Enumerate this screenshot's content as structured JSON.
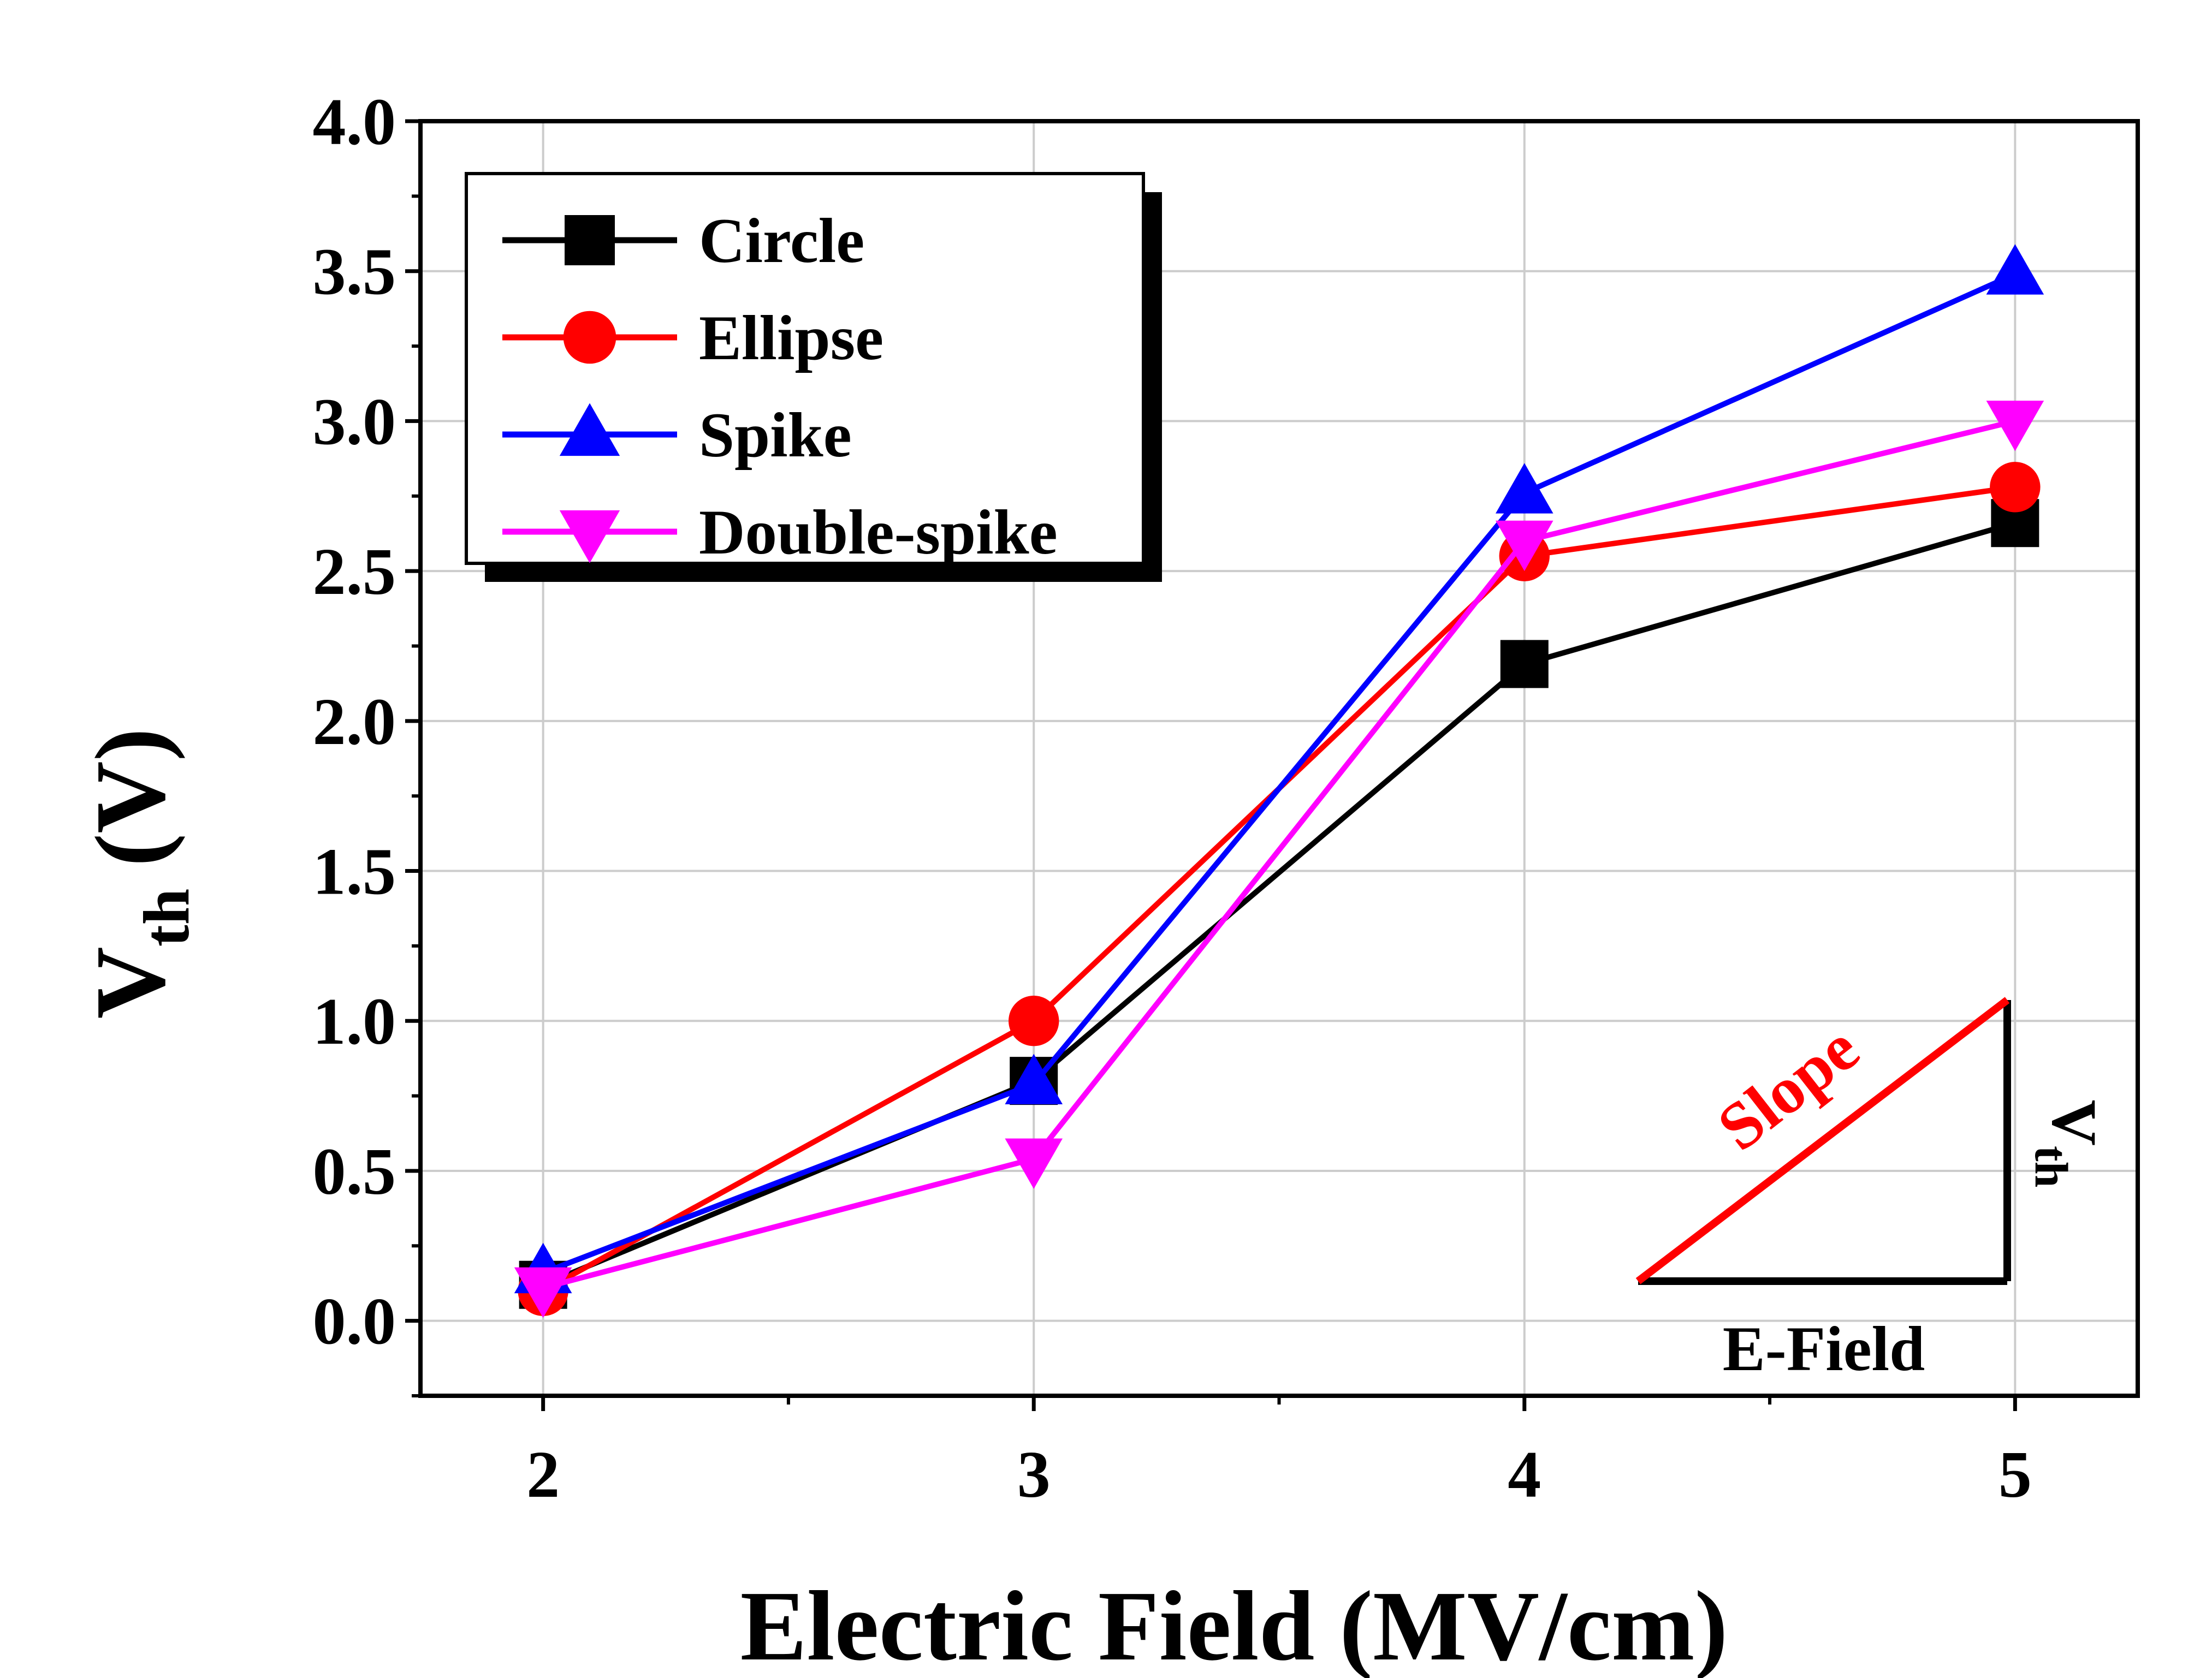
{
  "chart_data": {
    "type": "line",
    "xlabel": "Electric Field (MV/cm)",
    "ylabel_main": "V",
    "ylabel_sub": "th",
    "ylabel_unit": "(V)",
    "xlim": [
      1.75,
      5.25
    ],
    "ylim": [
      -0.25,
      4.0
    ],
    "x_ticks": [
      2,
      3,
      4,
      5
    ],
    "y_ticks": [
      0.0,
      0.5,
      1.0,
      1.5,
      2.0,
      2.5,
      3.0,
      3.5,
      4.0
    ],
    "grid": true,
    "legend_position": "top-left",
    "x": [
      2,
      3,
      4,
      5
    ],
    "series": [
      {
        "name": "Circle",
        "values": [
          0.12,
          0.8,
          2.19,
          2.66
        ],
        "color": "#000000",
        "marker": "square"
      },
      {
        "name": "Ellipse",
        "values": [
          0.1,
          1.0,
          2.55,
          2.78
        ],
        "color": "#ff0000",
        "marker": "circle"
      },
      {
        "name": "Spike",
        "values": [
          0.16,
          0.79,
          2.76,
          3.49
        ],
        "color": "#0000ff",
        "marker": "triangle-up"
      },
      {
        "name": "Double-spike",
        "values": [
          0.11,
          0.54,
          2.6,
          3.0
        ],
        "color": "#ff00ff",
        "marker": "triangle-down"
      }
    ],
    "inset": {
      "slope_label": "Slope",
      "vertical_label_main": "V",
      "vertical_label_sub": "th",
      "horizontal_label": "E-Field",
      "slope_color": "#ff0000"
    }
  }
}
